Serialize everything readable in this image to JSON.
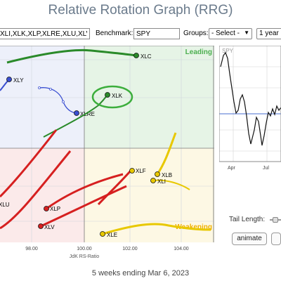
{
  "title": "Relative Rotation Graph (RRG)",
  "toolbar": {
    "symbols_value": "XLI,XLK,XLP,XLRE,XLU,XLV,XL",
    "benchmark_label": "Benchmark:",
    "benchmark_value": "SPY",
    "groups_label": "Groups:",
    "groups_value": "- Select -",
    "period_value": "1 year"
  },
  "chart": {
    "quadrants": {
      "leading": "Leading",
      "weakening": "Weakening"
    },
    "colors": {
      "leading": "#e6f4e6",
      "improving": "#edf0fa",
      "lagging": "#fbeaea",
      "weakening": "#fdf8e4"
    },
    "x_axis_label": "JdK RS-Ratio",
    "x_ticks": [
      "98.00",
      "100.00",
      "102.00",
      "104.00"
    ],
    "symbols": [
      "XLY",
      "XLC",
      "XLK",
      "XLRE",
      "XLF",
      "XLB",
      "XLI",
      "XLP",
      "XLV",
      "XLE",
      "XLU"
    ],
    "line_colors": {
      "green": "#2a8a2a",
      "blue": "#3a4fd1",
      "red": "#d62020",
      "yellow": "#e8c800"
    }
  },
  "mini_chart": {
    "symbol": "SPY",
    "months": [
      "Apr",
      "Jul"
    ]
  },
  "controls": {
    "tail_length_label": "Tail Length:",
    "animate_label": "animate"
  },
  "footer": "5 weeks ending Mar 6, 2023"
}
